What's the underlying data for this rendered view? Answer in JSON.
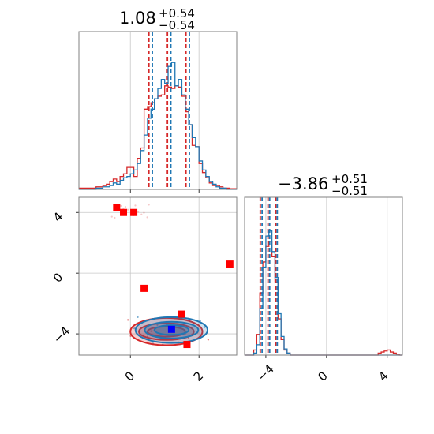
{
  "chart_data": [
    {
      "type": "histogram",
      "panel": "marginal-param-1",
      "title": {
        "value": "1.08",
        "plus": "+0.54",
        "minus": "−0.54"
      },
      "xlim": [
        -1.5,
        3.1
      ],
      "series": [
        {
          "name": "",
          "color": "#d62728",
          "quantile_lines": [
            0.54,
            1.08,
            1.62
          ],
          "bins_x": [
            -1.5,
            -1.4,
            -1.3,
            -1.2,
            -1.1,
            -1.0,
            -0.9,
            -0.8,
            -0.7,
            -0.6,
            -0.5,
            -0.4,
            -0.3,
            -0.2,
            -0.1,
            0.0,
            0.1,
            0.2,
            0.3,
            0.4,
            0.5,
            0.6,
            0.7,
            0.8,
            0.9,
            1.0,
            1.1,
            1.2,
            1.3,
            1.4,
            1.5,
            1.6,
            1.7,
            1.8,
            1.9,
            2.0,
            2.1,
            2.2,
            2.3,
            2.4,
            2.5,
            2.6,
            2.7,
            2.8,
            2.9,
            3.0,
            3.1
          ],
          "counts": [
            0.01,
            0.01,
            0.01,
            0.01,
            0.01,
            0.02,
            0.02,
            0.03,
            0.04,
            0.06,
            0.08,
            0.06,
            0.1,
            0.12,
            0.17,
            0.17,
            0.1,
            0.24,
            0.32,
            0.62,
            0.64,
            0.67,
            0.7,
            0.72,
            0.73,
            0.8,
            0.79,
            0.78,
            0.8,
            0.79,
            0.72,
            0.6,
            0.5,
            0.34,
            0.33,
            0.2,
            0.13,
            0.09,
            0.05,
            0.03,
            0.03,
            0.02,
            0.01,
            0.01,
            0.005,
            0.005
          ]
        },
        {
          "name": "",
          "color": "#1f77b4",
          "quantile_lines": [
            0.64,
            1.18,
            1.72
          ],
          "bins_x": [
            -1.5,
            -1.4,
            -1.3,
            -1.2,
            -1.1,
            -1.0,
            -0.9,
            -0.8,
            -0.7,
            -0.6,
            -0.5,
            -0.4,
            -0.3,
            -0.2,
            -0.1,
            0.0,
            0.1,
            0.2,
            0.3,
            0.4,
            0.5,
            0.6,
            0.7,
            0.8,
            0.9,
            1.0,
            1.1,
            1.2,
            1.3,
            1.4,
            1.5,
            1.6,
            1.7,
            1.8,
            1.9,
            2.0,
            2.1,
            2.2,
            2.3,
            2.4,
            2.5,
            2.6,
            2.7,
            2.8,
            2.9,
            3.0,
            3.1
          ],
          "counts": [
            0.0,
            0.0,
            0.0,
            0.0,
            0.0,
            0.01,
            0.01,
            0.02,
            0.02,
            0.03,
            0.05,
            0.04,
            0.07,
            0.09,
            0.1,
            0.12,
            0.15,
            0.2,
            0.3,
            0.42,
            0.55,
            0.62,
            0.7,
            0.78,
            0.85,
            0.82,
            0.95,
            0.98,
            0.8,
            0.85,
            0.73,
            0.62,
            0.5,
            0.4,
            0.33,
            0.22,
            0.15,
            0.1,
            0.06,
            0.04,
            0.02,
            0.01,
            0.01,
            0.0,
            0.0,
            0.0
          ]
        }
      ]
    },
    {
      "type": "histogram",
      "panel": "marginal-param-2",
      "title": {
        "value": "−3.86",
        "plus": "+0.51",
        "minus": "−0.51"
      },
      "xlim": [
        -5.4,
        5.0
      ],
      "xticks": [
        -4,
        0,
        4
      ],
      "series": [
        {
          "name": "",
          "color": "#d62728",
          "quantile_lines": [
            -4.37,
            -3.86,
            -3.35
          ],
          "bins_x": [
            -5.4,
            -5.2,
            -5.0,
            -4.8,
            -4.6,
            -4.4,
            -4.2,
            -4.0,
            -3.8,
            -3.6,
            -3.4,
            -3.2,
            -3.0,
            -2.8,
            -2.6,
            -2.4,
            -2.2,
            -2.0,
            -1.5,
            -1.0,
            0.0,
            1.0,
            2.0,
            3.0,
            3.4,
            3.6,
            3.8,
            4.0,
            4.2,
            4.4,
            4.6,
            4.8,
            5.0
          ],
          "counts": [
            0.0,
            0.0,
            0.0,
            0.05,
            0.2,
            0.6,
            0.9,
            1.05,
            1.1,
            0.95,
            0.7,
            0.35,
            0.15,
            0.05,
            0.02,
            0.0,
            0.0,
            0.0,
            0.0,
            0.0,
            0.0,
            0.0,
            0.0,
            0.0,
            0.02,
            0.03,
            0.04,
            0.05,
            0.03,
            0.02,
            0.01,
            0.0
          ]
        },
        {
          "name": "",
          "color": "#1f77b4",
          "quantile_lines": [
            -4.25,
            -3.75,
            -3.25
          ],
          "bins_x": [
            -5.4,
            -5.2,
            -5.0,
            -4.8,
            -4.6,
            -4.4,
            -4.2,
            -4.0,
            -3.8,
            -3.6,
            -3.4,
            -3.2,
            -3.0,
            -2.8,
            -2.6,
            -2.4,
            -2.2,
            -2.0,
            -1.5,
            -1.0,
            0.0,
            1.0,
            2.0,
            3.0,
            3.4,
            3.6,
            3.8,
            4.0,
            4.2,
            4.4,
            4.6,
            4.8,
            5.0
          ],
          "counts": [
            0.0,
            0.0,
            0.0,
            0.02,
            0.1,
            0.45,
            0.85,
            1.15,
            1.2,
            1.0,
            0.75,
            0.4,
            0.18,
            0.06,
            0.02,
            0.0,
            0.0,
            0.0,
            0.0,
            0.0,
            0.0,
            0.0,
            0.0,
            0.0,
            0.0,
            0.0,
            0.0,
            0.0,
            0.0,
            0.0,
            0.0,
            0.0
          ]
        }
      ]
    },
    {
      "type": "scatter",
      "panel": "joint-2d",
      "xlim": [
        -1.5,
        3.1
      ],
      "ylim": [
        -5.4,
        5.0
      ],
      "xticks": [
        0,
        2
      ],
      "yticks": [
        4,
        0,
        -4
      ],
      "contours": [
        {
          "color": "#d62728",
          "center": [
            1.05,
            -3.85
          ],
          "levels_radius": [
            [
              1.05,
              0.9
            ],
            [
              0.8,
              0.55
            ],
            [
              0.55,
              0.33
            ]
          ]
        },
        {
          "color": "#1f77b4",
          "center": [
            1.2,
            -3.75
          ],
          "levels_radius": [
            [
              1.05,
              0.85
            ],
            [
              0.78,
              0.55
            ],
            [
              0.5,
              0.32
            ]
          ]
        }
      ],
      "markers": [
        {
          "color": "#ff0000",
          "x": -0.4,
          "y": 4.3
        },
        {
          "color": "#ff0000",
          "x": -0.2,
          "y": 4.0
        },
        {
          "color": "#ff0000",
          "x": 0.1,
          "y": 4.0
        },
        {
          "color": "#ff0000",
          "x": 2.9,
          "y": 0.6
        },
        {
          "color": "#ff0000",
          "x": 0.4,
          "y": -1.0
        },
        {
          "color": "#ff0000",
          "x": 1.5,
          "y": -2.7
        },
        {
          "color": "#ff0000",
          "x": 1.65,
          "y": -4.7
        },
        {
          "color": "#0000ff",
          "x": 1.2,
          "y": -3.7
        }
      ]
    }
  ]
}
